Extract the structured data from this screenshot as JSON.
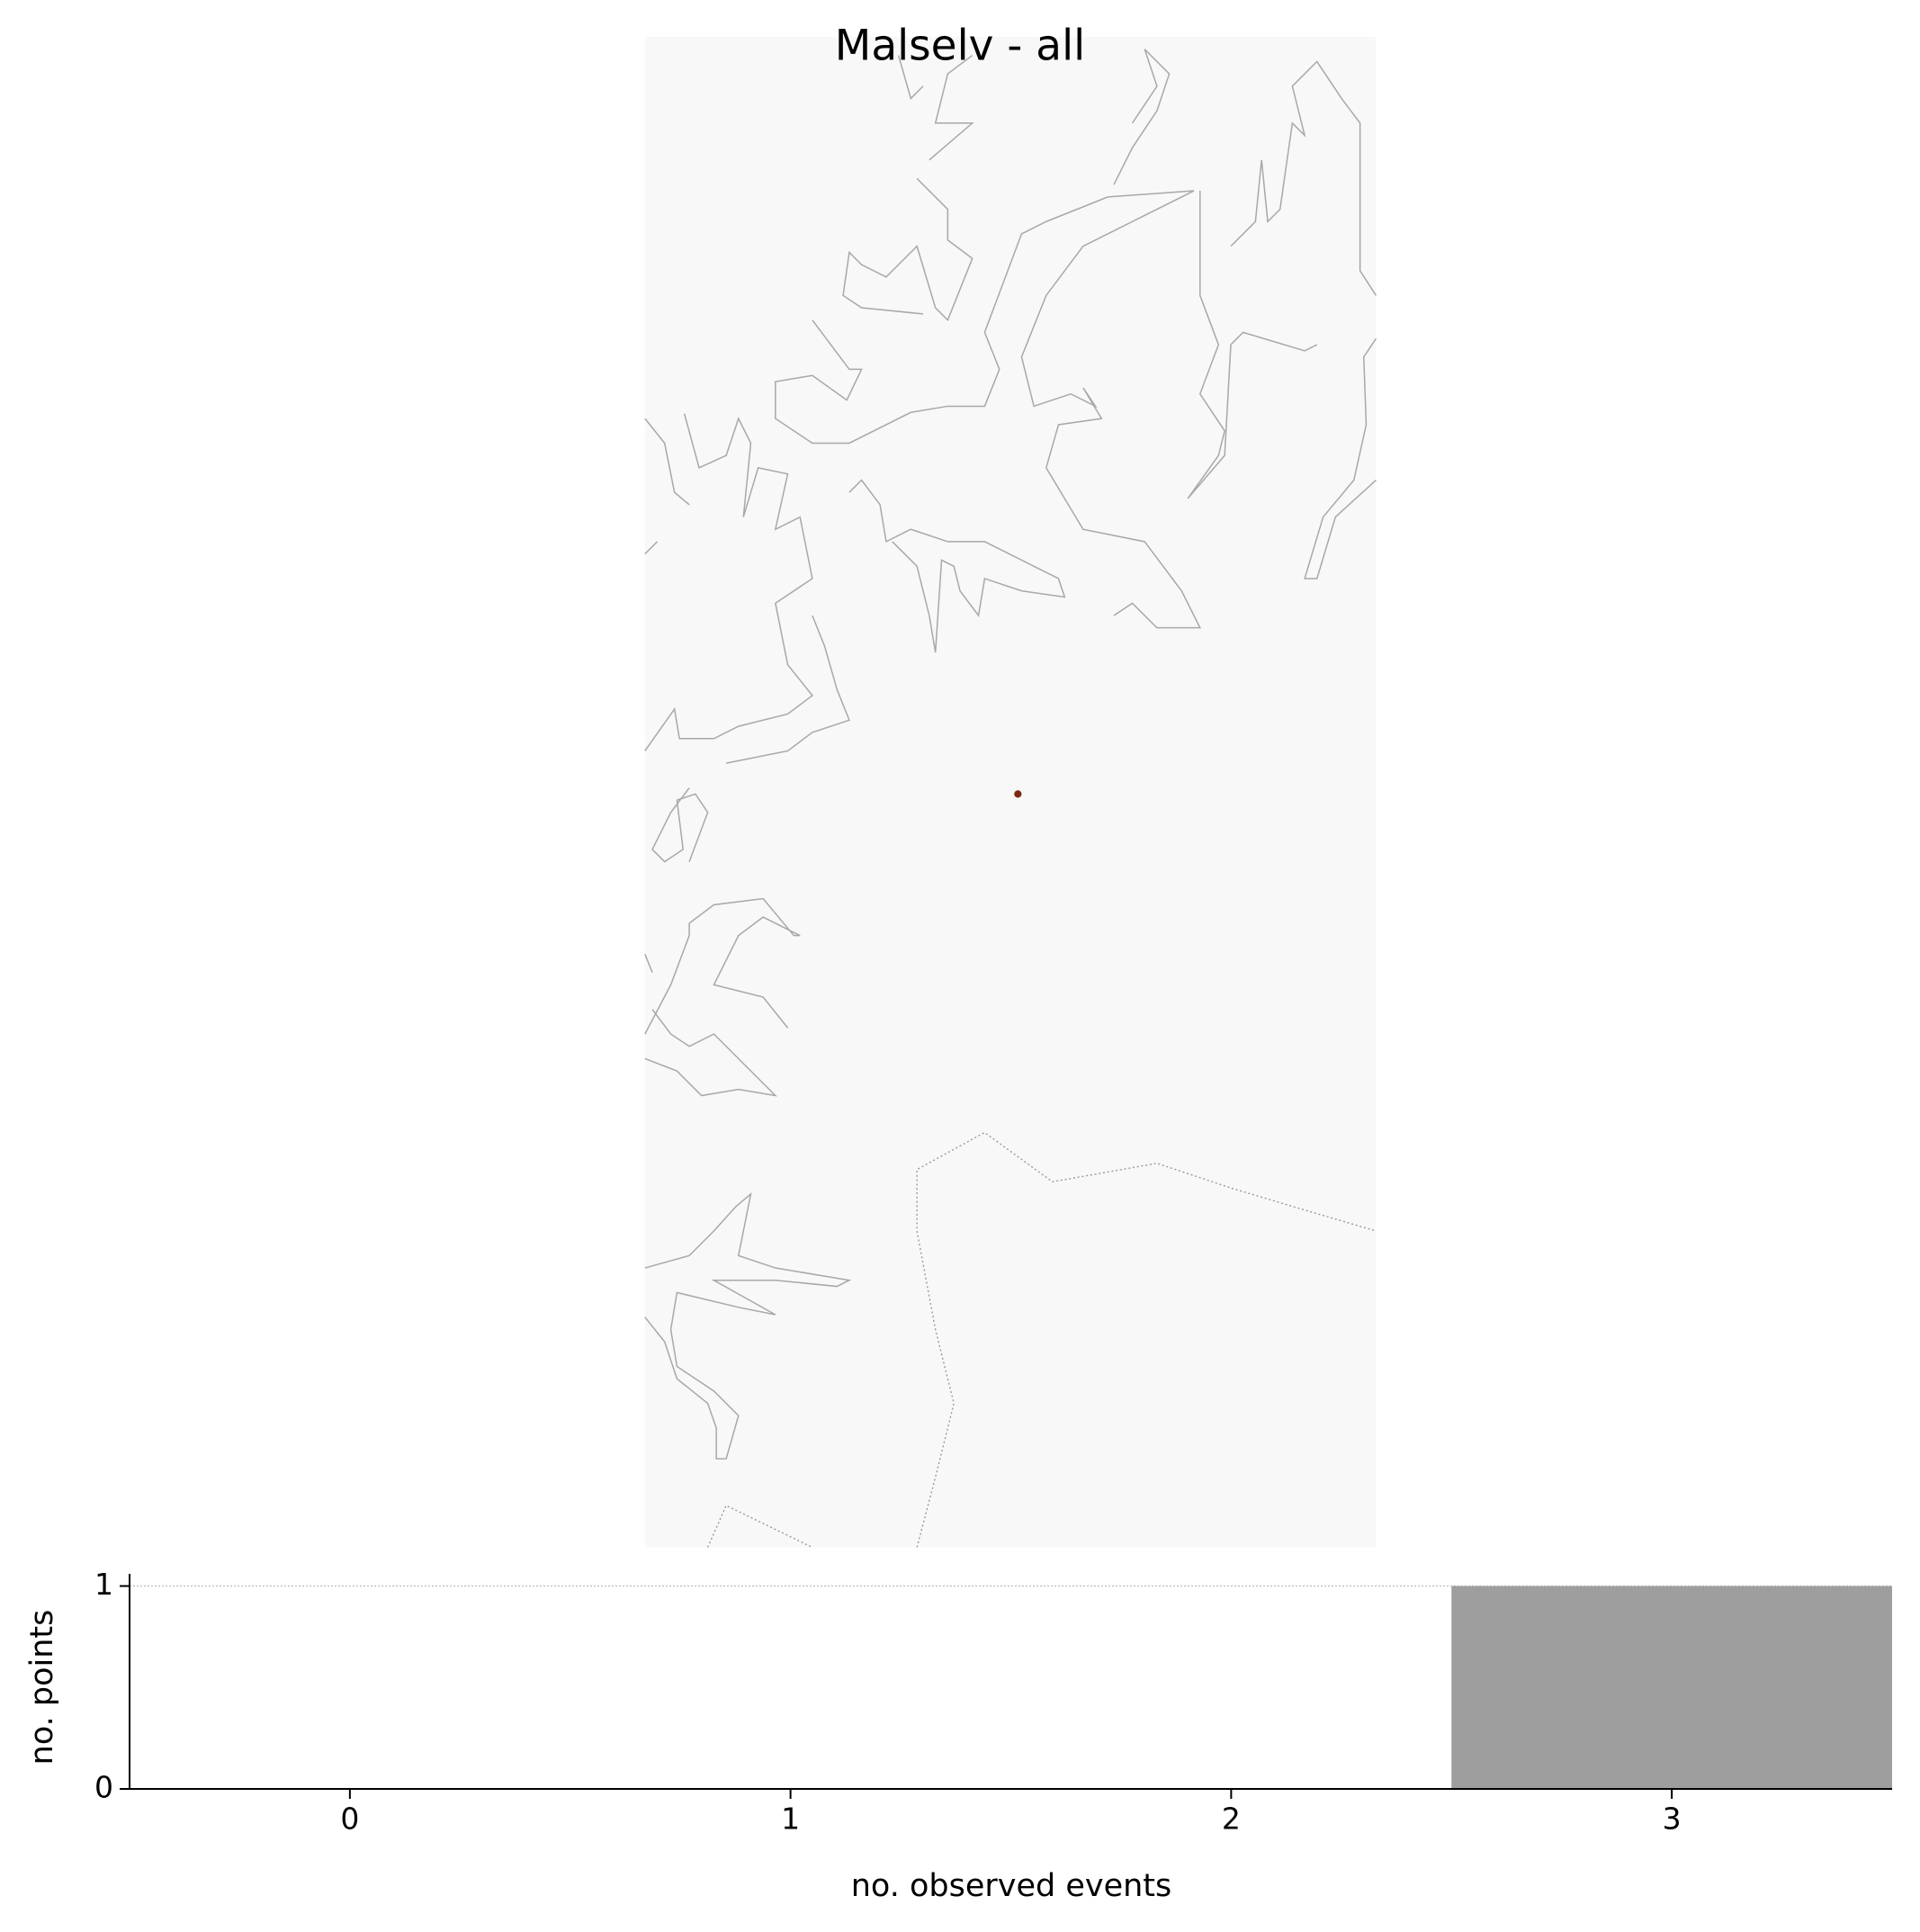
{
  "chart_data": {
    "type": "bar",
    "title": "Malselv - all",
    "x": [
      0,
      1,
      2,
      3
    ],
    "values": [
      0,
      0,
      0,
      1
    ],
    "color": "#9e9e9e",
    "xlabel": "no. observed events",
    "ylabel": "no. points",
    "xlim": [
      -0.5,
      3.5
    ],
    "xticks": [
      0,
      1,
      2,
      3
    ],
    "ylim": [
      0,
      1.06
    ],
    "yticks": [
      0,
      1
    ],
    "grid": true
  }
}
